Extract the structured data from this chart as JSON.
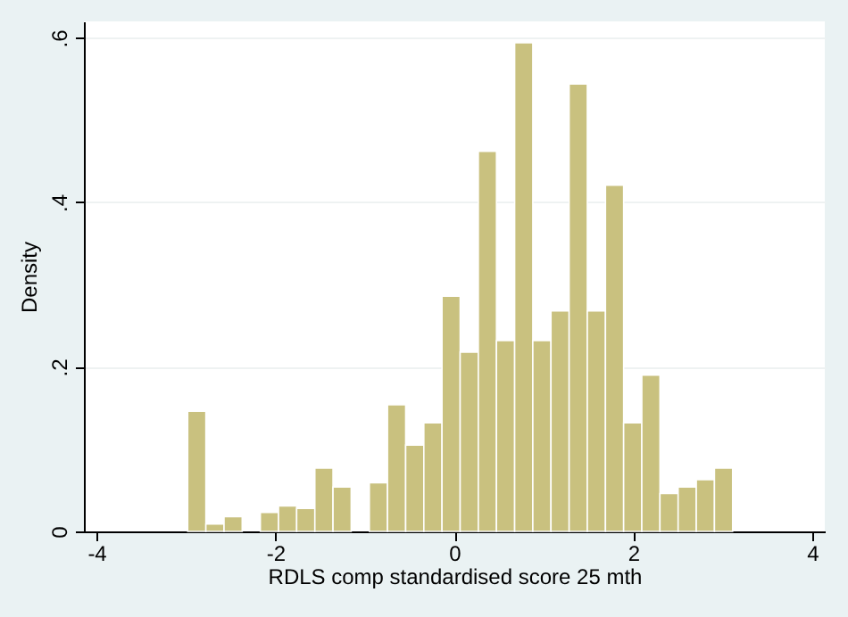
{
  "chart_data": {
    "type": "histogram",
    "xlabel": "RDLS comp standardised score 25 mth",
    "ylabel": "Density",
    "bins": [
      -2.98,
      -2.777,
      -2.574,
      -2.371,
      -2.168,
      -1.965,
      -1.762,
      -1.559,
      -1.356,
      -1.153,
      -0.95,
      -0.747,
      -0.544,
      -0.341,
      -0.138,
      0.065,
      0.268,
      0.471,
      0.674,
      0.877,
      1.08,
      1.283,
      1.486,
      1.689,
      1.892,
      2.095,
      2.298,
      2.501,
      2.704,
      2.907,
      3.11
    ],
    "values": [
      0.146,
      0.009,
      0.018,
      0,
      0.023,
      0.031,
      0.028,
      0.077,
      0.054,
      0,
      0.059,
      0.154,
      0.105,
      0.132,
      0.286,
      0.218,
      0.462,
      0.232,
      0.594,
      0.232,
      0.268,
      0.544,
      0.268,
      0.421,
      0.132,
      0.19,
      0.046,
      0.054,
      0.063,
      0.077
    ],
    "color": "#c9c17f",
    "xlim": [
      -4.14,
      4.14
    ],
    "xticks": [
      -4,
      -2,
      0,
      2,
      4
    ],
    "ylim": [
      0,
      0.62
    ],
    "yticks": [
      0,
      {
        "value": 0.2,
        "label": ".2"
      },
      {
        "value": 0.4,
        "label": ".4"
      },
      {
        "value": 0.6,
        "label": ".6"
      }
    ],
    "grid": "y"
  }
}
